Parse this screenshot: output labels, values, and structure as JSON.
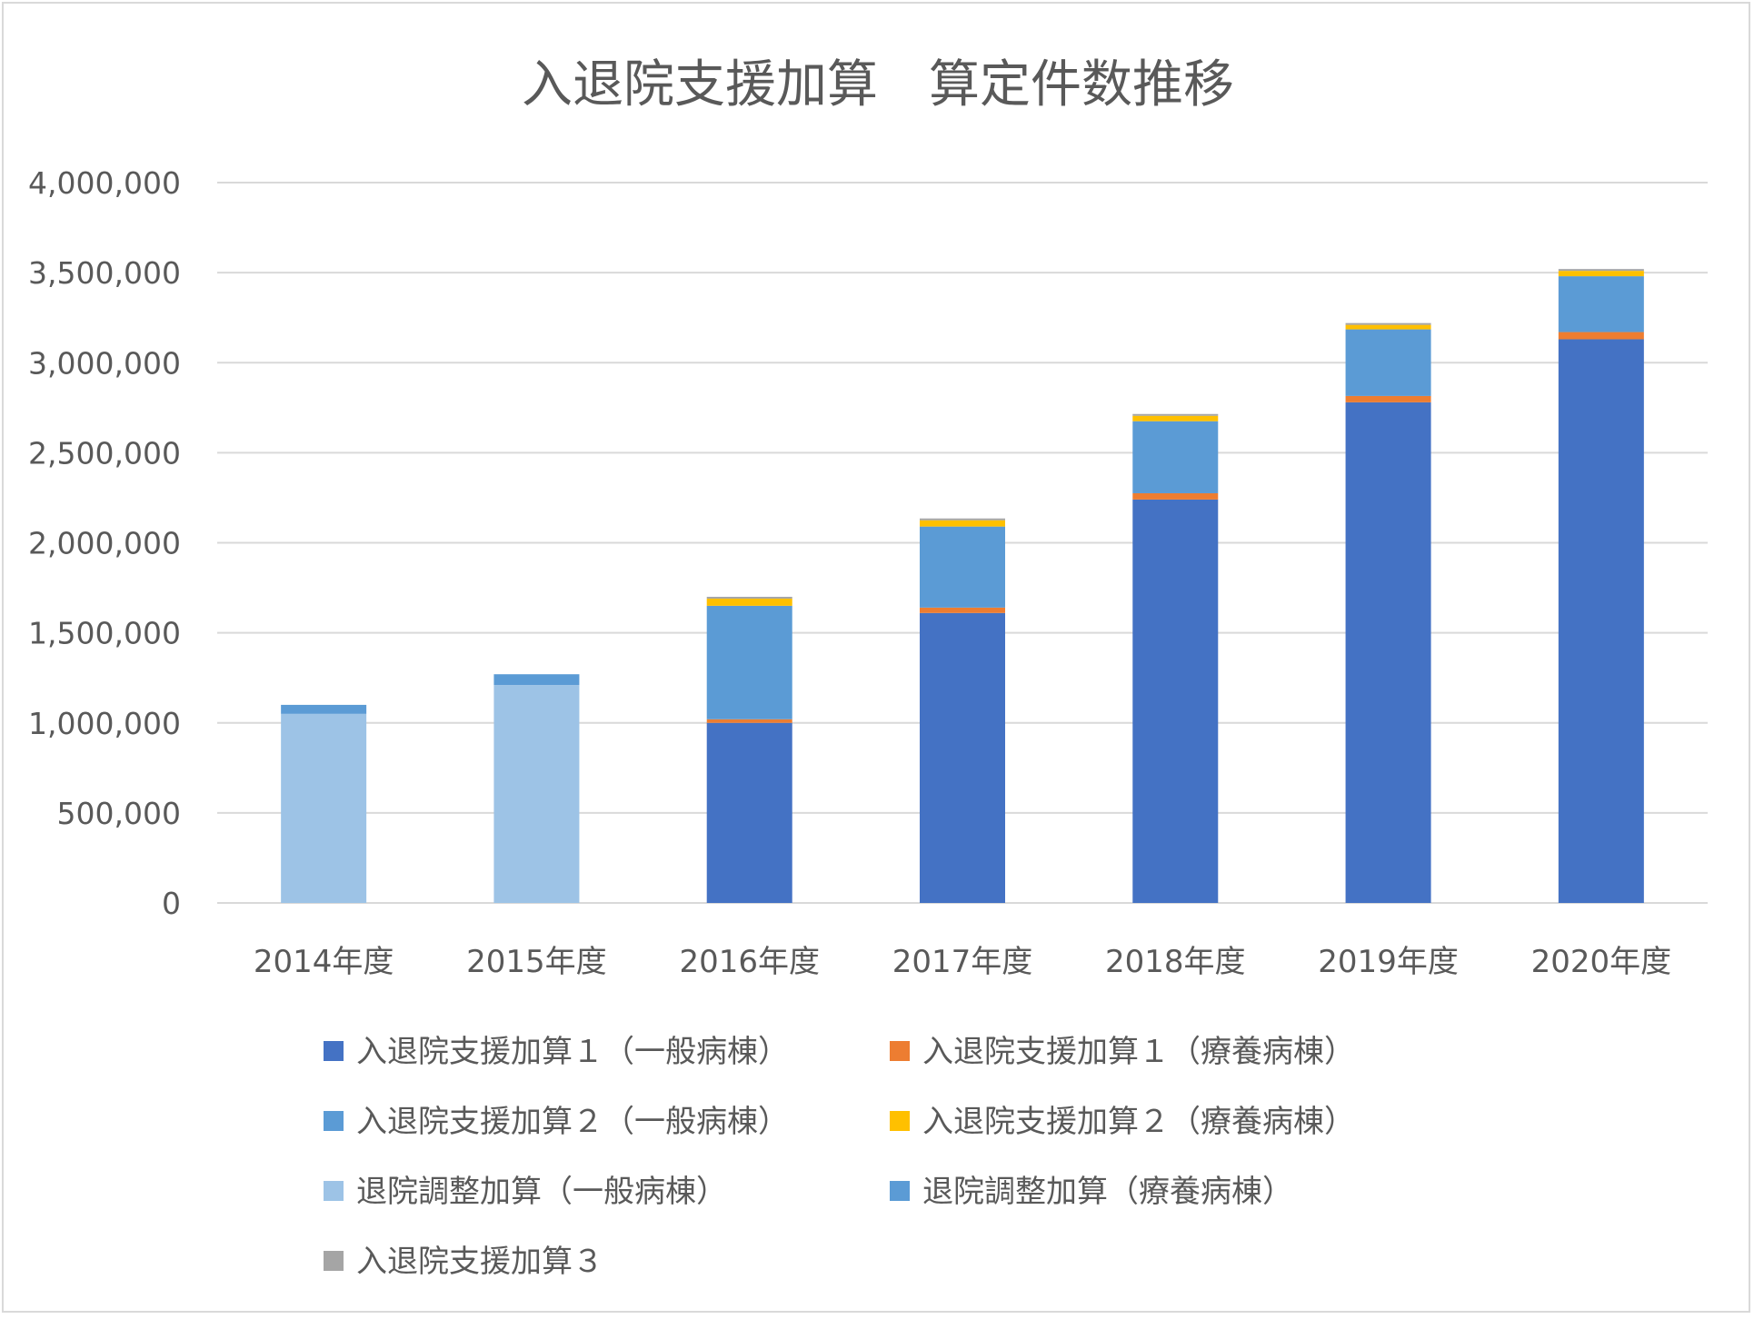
{
  "colors": {
    "s1": "#4472c4",
    "s2": "#ed7d31",
    "s3": "#5b9bd5",
    "s4": "#ffc000",
    "s5": "#9dc3e6",
    "s6": "#5b9bd5",
    "s7": "#a5a5a5",
    "grid": "#d9d9d9",
    "text": "#595959"
  },
  "chart_data": {
    "type": "bar",
    "stacked": true,
    "title": "入退院支援加算　算定件数推移",
    "xlabel": "",
    "ylabel": "",
    "ylim": [
      0,
      4000000
    ],
    "yticks": [
      0,
      500000,
      1000000,
      1500000,
      2000000,
      2500000,
      3000000,
      3500000,
      4000000
    ],
    "ytick_labels": [
      "0",
      "500,000",
      "1,000,000",
      "1,500,000",
      "2,000,000",
      "2,500,000",
      "3,000,000",
      "3,500,000",
      "4,000,000"
    ],
    "grid": true,
    "legend_position": "bottom",
    "categories": [
      "2014年度",
      "2015年度",
      "2016年度",
      "2017年度",
      "2018年度",
      "2019年度",
      "2020年度"
    ],
    "series": [
      {
        "name": "入退院支援加算１（一般病棟）",
        "color_key": "s1",
        "values": [
          0,
          0,
          1000000,
          1610000,
          2240000,
          2780000,
          3130000
        ]
      },
      {
        "name": "入退院支援加算１（療養病棟）",
        "color_key": "s2",
        "values": [
          0,
          0,
          20000,
          30000,
          35000,
          35000,
          40000
        ]
      },
      {
        "name": "入退院支援加算２（一般病棟）",
        "color_key": "s3",
        "values": [
          0,
          0,
          630000,
          450000,
          400000,
          370000,
          310000
        ]
      },
      {
        "name": "入退院支援加算２（療養病棟）",
        "color_key": "s4",
        "values": [
          0,
          0,
          40000,
          35000,
          30000,
          25000,
          30000
        ]
      },
      {
        "name": "退院調整加算（一般病棟）",
        "color_key": "s5",
        "values": [
          1050000,
          1210000,
          0,
          0,
          0,
          0,
          0
        ]
      },
      {
        "name": "退院調整加算（療養病棟）",
        "color_key": "s6",
        "values": [
          50000,
          60000,
          0,
          0,
          0,
          0,
          0
        ]
      },
      {
        "name": "入退院支援加算３",
        "color_key": "s7",
        "values": [
          0,
          0,
          10000,
          10000,
          10000,
          10000,
          10000
        ]
      }
    ]
  }
}
